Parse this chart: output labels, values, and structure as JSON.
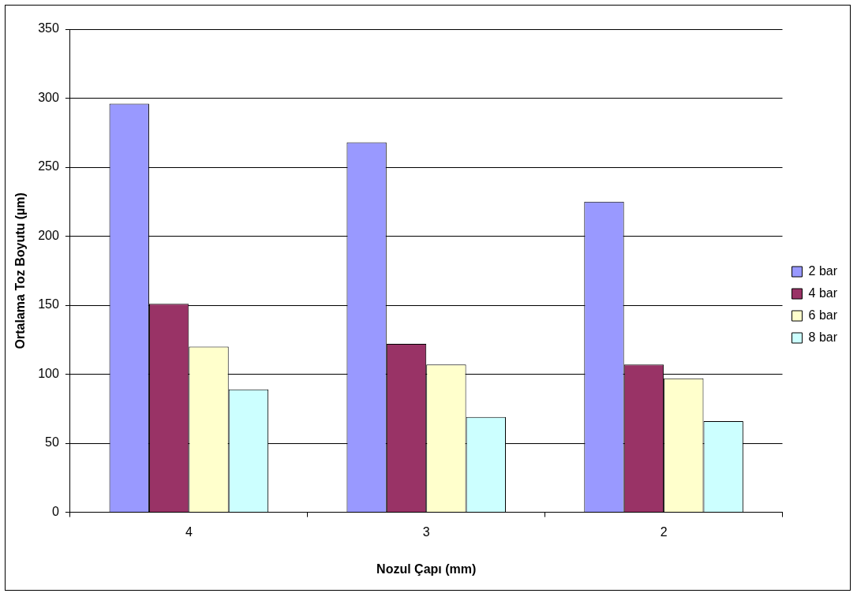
{
  "chart_data": {
    "type": "bar",
    "xlabel": "Nozul Çapı (mm)",
    "ylabel": "Ortalama Toz Boyutu (µm)",
    "categories": [
      "4",
      "3",
      "2"
    ],
    "series": [
      {
        "name": "2 bar",
        "color": "#9999ff",
        "values": [
          296,
          268,
          225
        ]
      },
      {
        "name": "4 bar",
        "color": "#993366",
        "values": [
          151,
          122,
          107
        ]
      },
      {
        "name": "6 bar",
        "color": "#ffffcc",
        "values": [
          120,
          107,
          97
        ]
      },
      {
        "name": "8 bar",
        "color": "#ccffff",
        "values": [
          89,
          69,
          66
        ]
      }
    ],
    "ylim": [
      0,
      350
    ],
    "yticks": [
      0,
      50,
      100,
      150,
      200,
      250,
      300,
      350
    ],
    "grid": "y",
    "legend": "right"
  }
}
